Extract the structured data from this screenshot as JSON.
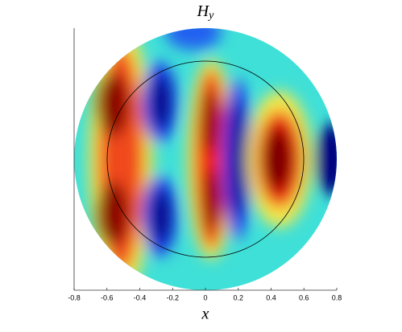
{
  "chart_data": {
    "type": "field",
    "title": {
      "base": "H",
      "sub": "y"
    },
    "x_label": "x",
    "xlim": [
      -0.8,
      0.8
    ],
    "xticks": [
      -0.8,
      -0.6,
      -0.4,
      -0.2,
      0,
      0.2,
      0.4,
      0.6,
      0.8
    ]
  }
}
